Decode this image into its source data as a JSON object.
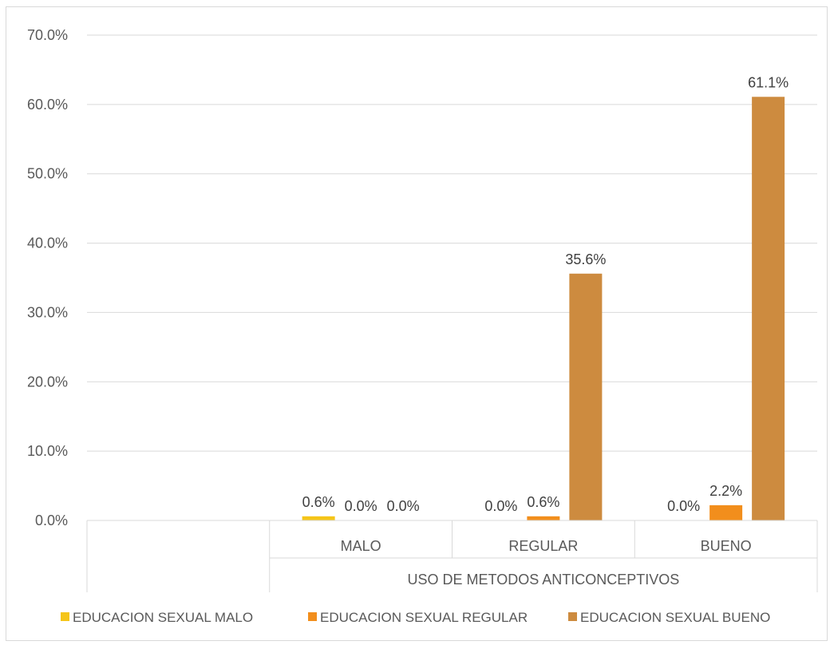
{
  "chart_data": {
    "type": "bar",
    "categories": [
      "",
      "MALO",
      "REGULAR",
      "BUENO"
    ],
    "group_label": "USO DE METODOS ANTICONCEPTIVOS",
    "series": [
      {
        "name": "EDUCACION SEXUAL MALO",
        "color": "#f5c518",
        "values": [
          null,
          0.6,
          0.0,
          0.0
        ],
        "labels": [
          null,
          "0.6%",
          "0.0%",
          "0.0%"
        ]
      },
      {
        "name": "EDUCACION SEXUAL REGULAR",
        "color": "#f28e1c",
        "values": [
          null,
          0.0,
          0.6,
          2.2
        ],
        "labels": [
          null,
          "0.0%",
          "0.6%",
          "2.2%"
        ]
      },
      {
        "name": "EDUCACION SEXUAL BUENO",
        "color": "#cd8b3f",
        "values": [
          null,
          0.0,
          35.6,
          61.1
        ],
        "labels": [
          null,
          "0.0%",
          "35.6%",
          "61.1%"
        ]
      }
    ],
    "yticks": [
      "0.0%",
      "10.0%",
      "20.0%",
      "30.0%",
      "40.0%",
      "50.0%",
      "60.0%",
      "70.0%"
    ],
    "ylim": [
      0,
      70
    ],
    "grid": true,
    "legend_position": "bottom"
  }
}
